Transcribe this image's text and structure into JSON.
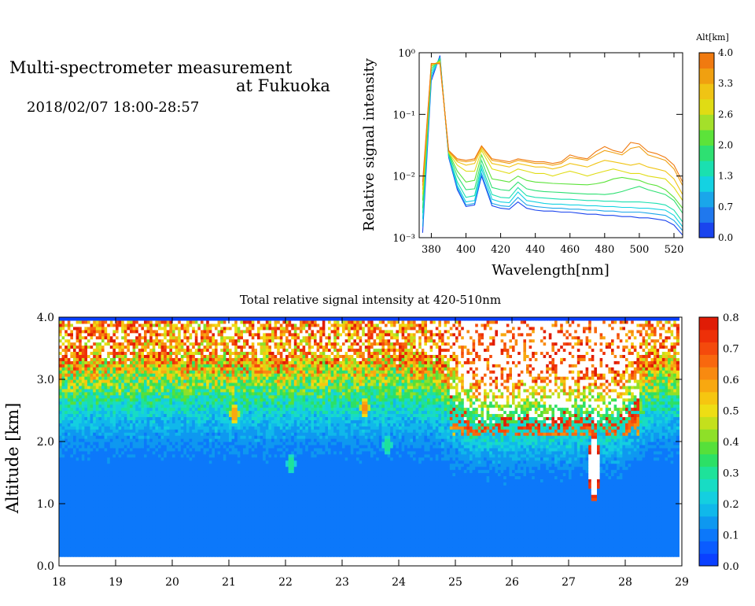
{
  "header": {
    "title_line1": "Multi-spectrometer measurement",
    "title_line2": "at Fukuoka",
    "date_range": "2018/02/07 18:00-28:57"
  },
  "chart_data": [
    {
      "type": "line",
      "title": "",
      "xlabel": "Wavelength[nm]",
      "ylabel": "Relative signal intensity",
      "yscale": "log",
      "xlim": [
        373,
        525
      ],
      "ylim": [
        0.001,
        1
      ],
      "x_ticks": [
        "380",
        "400",
        "420",
        "440",
        "460",
        "480",
        "500",
        "520"
      ],
      "y_ticks": [
        "10⁻³",
        "10⁻²",
        "10⁻¹",
        "10⁰"
      ],
      "colorbar": {
        "title": "Alt[km]",
        "ticks": [
          "0.0",
          "0.7",
          "1.3",
          "2.0",
          "2.6",
          "3.3",
          "4.0"
        ],
        "range": [
          0.0,
          4.0
        ],
        "colors": [
          "#1a44ee",
          "#1f78ee",
          "#1aa6ea",
          "#14d2e2",
          "#1ae0b0",
          "#2ee072",
          "#5ce33a",
          "#a4e02a",
          "#e0dc14",
          "#f0c414",
          "#f0a010",
          "#f07a10"
        ]
      },
      "x": [
        375,
        380,
        385,
        390,
        395,
        400,
        405,
        409,
        415,
        420,
        425,
        430,
        435,
        440,
        445,
        450,
        455,
        460,
        465,
        470,
        475,
        480,
        485,
        490,
        495,
        500,
        505,
        510,
        515,
        520,
        525
      ],
      "series": [
        {
          "alt": 0.2,
          "values": [
            0.0012,
            0.35,
            0.9,
            0.02,
            0.006,
            0.0032,
            0.0034,
            0.01,
            0.0033,
            0.003,
            0.0029,
            0.0038,
            0.003,
            0.0028,
            0.0027,
            0.0027,
            0.0026,
            0.0026,
            0.0025,
            0.0024,
            0.0024,
            0.0023,
            0.0023,
            0.0022,
            0.0022,
            0.0021,
            0.0021,
            0.002,
            0.0019,
            0.0016,
            0.0011
          ]
        },
        {
          "alt": 0.7,
          "values": [
            0.0015,
            0.4,
            0.85,
            0.021,
            0.0065,
            0.0034,
            0.0036,
            0.011,
            0.0036,
            0.0033,
            0.0032,
            0.0045,
            0.0034,
            0.0032,
            0.0031,
            0.003,
            0.003,
            0.0029,
            0.0029,
            0.0028,
            0.0028,
            0.0027,
            0.0027,
            0.0026,
            0.0026,
            0.0026,
            0.0025,
            0.0024,
            0.0023,
            0.0019,
            0.0013
          ]
        },
        {
          "alt": 1.1,
          "values": [
            0.002,
            0.45,
            0.8,
            0.022,
            0.007,
            0.0038,
            0.004,
            0.013,
            0.0042,
            0.0038,
            0.0037,
            0.0055,
            0.004,
            0.0038,
            0.0036,
            0.0035,
            0.0035,
            0.0034,
            0.0034,
            0.0033,
            0.0033,
            0.0032,
            0.0032,
            0.0031,
            0.0031,
            0.003,
            0.003,
            0.0029,
            0.0028,
            0.0023,
            0.0015
          ]
        },
        {
          "alt": 1.5,
          "values": [
            0.0025,
            0.5,
            0.8,
            0.022,
            0.008,
            0.0045,
            0.0048,
            0.015,
            0.005,
            0.0045,
            0.0044,
            0.0065,
            0.0048,
            0.0045,
            0.0044,
            0.0043,
            0.0042,
            0.0042,
            0.0041,
            0.004,
            0.004,
            0.0039,
            0.0039,
            0.0038,
            0.0038,
            0.0038,
            0.0037,
            0.0036,
            0.0034,
            0.0028,
            0.0018
          ]
        },
        {
          "alt": 1.9,
          "values": [
            0.003,
            0.55,
            0.78,
            0.023,
            0.01,
            0.006,
            0.0062,
            0.018,
            0.0065,
            0.006,
            0.0058,
            0.008,
            0.0062,
            0.0058,
            0.0056,
            0.0055,
            0.0054,
            0.0053,
            0.0052,
            0.0051,
            0.0051,
            0.005,
            0.0052,
            0.0056,
            0.0062,
            0.0068,
            0.006,
            0.0055,
            0.005,
            0.004,
            0.0025
          ]
        },
        {
          "alt": 2.3,
          "values": [
            0.004,
            0.6,
            0.75,
            0.024,
            0.012,
            0.008,
            0.0085,
            0.022,
            0.009,
            0.0085,
            0.008,
            0.01,
            0.0085,
            0.008,
            0.0078,
            0.0076,
            0.0075,
            0.0074,
            0.0073,
            0.0072,
            0.0075,
            0.008,
            0.009,
            0.0095,
            0.009,
            0.0085,
            0.0075,
            0.007,
            0.006,
            0.0045,
            0.003
          ]
        },
        {
          "alt": 2.7,
          "values": [
            0.005,
            0.62,
            0.72,
            0.024,
            0.015,
            0.012,
            0.012,
            0.026,
            0.013,
            0.012,
            0.011,
            0.013,
            0.012,
            0.011,
            0.011,
            0.01,
            0.011,
            0.012,
            0.011,
            0.01,
            0.011,
            0.012,
            0.013,
            0.012,
            0.011,
            0.011,
            0.01,
            0.0095,
            0.009,
            0.0065,
            0.004
          ]
        },
        {
          "alt": 3.1,
          "values": [
            0.006,
            0.65,
            0.7,
            0.025,
            0.017,
            0.015,
            0.016,
            0.028,
            0.016,
            0.015,
            0.014,
            0.016,
            0.015,
            0.014,
            0.014,
            0.013,
            0.014,
            0.016,
            0.015,
            0.014,
            0.016,
            0.018,
            0.017,
            0.016,
            0.015,
            0.016,
            0.014,
            0.013,
            0.012,
            0.009,
            0.005
          ]
        },
        {
          "alt": 3.5,
          "values": [
            0.007,
            0.66,
            0.68,
            0.025,
            0.018,
            0.017,
            0.018,
            0.03,
            0.018,
            0.017,
            0.016,
            0.018,
            0.017,
            0.016,
            0.016,
            0.015,
            0.016,
            0.02,
            0.019,
            0.018,
            0.022,
            0.026,
            0.024,
            0.022,
            0.028,
            0.03,
            0.022,
            0.02,
            0.018,
            0.013,
            0.007
          ]
        },
        {
          "alt": 3.8,
          "values": [
            0.008,
            0.67,
            0.66,
            0.026,
            0.019,
            0.018,
            0.019,
            0.031,
            0.019,
            0.018,
            0.017,
            0.019,
            0.018,
            0.017,
            0.017,
            0.016,
            0.017,
            0.022,
            0.02,
            0.019,
            0.025,
            0.03,
            0.026,
            0.024,
            0.035,
            0.033,
            0.025,
            0.023,
            0.02,
            0.015,
            0.008
          ]
        }
      ]
    },
    {
      "type": "heatmap",
      "title": "Total relative signal intensity at 420-510nm",
      "xlabel": "",
      "ylabel": "Altitude [km]",
      "xlim": [
        18,
        29
      ],
      "ylim": [
        0,
        4
      ],
      "x_ticks": [
        "18",
        "19",
        "20",
        "21",
        "22",
        "23",
        "24",
        "25",
        "26",
        "27",
        "28",
        "29"
      ],
      "y_ticks": [
        "0.0",
        "1.0",
        "2.0",
        "3.0",
        "4.0"
      ],
      "data_time_range": [
        18.0,
        28.95
      ],
      "data_alt_range": [
        0.15,
        4.0
      ],
      "colorbar": {
        "title": "",
        "ticks": [
          "0.0",
          "0.1",
          "0.2",
          "0.3",
          "0.4",
          "0.5",
          "0.6",
          "0.7",
          "0.8"
        ],
        "range": [
          0.0,
          0.8
        ],
        "colors": [
          "#0a40ff",
          "#0a5cff",
          "#0c78fa",
          "#0e98f0",
          "#10b8ea",
          "#14cfe0",
          "#18dcc4",
          "#1ee29a",
          "#2ce066",
          "#56e03a",
          "#8ee028",
          "#c4e01c",
          "#eede14",
          "#f6c610",
          "#f8a810",
          "#f88a10",
          "#f8680e",
          "#f44a0c",
          "#ee3008",
          "#e01c06"
        ],
        "over_color": "#ffffff"
      },
      "features": [
        {
          "t": 21.1,
          "h": 2.45,
          "w": 0.08,
          "hh": 0.16,
          "v": 0.62
        },
        {
          "t": 22.1,
          "h": 1.65,
          "w": 0.08,
          "hh": 0.18,
          "v": 0.32
        },
        {
          "t": 23.4,
          "h": 2.55,
          "w": 0.08,
          "hh": 0.16,
          "v": 0.65
        },
        {
          "t": 23.8,
          "h": 1.95,
          "w": 0.08,
          "hh": 0.18,
          "v": 0.33
        },
        {
          "t": 27.45,
          "h": 1.6,
          "w": 0.1,
          "hh": 0.55,
          "v": 1.0
        }
      ]
    }
  ]
}
